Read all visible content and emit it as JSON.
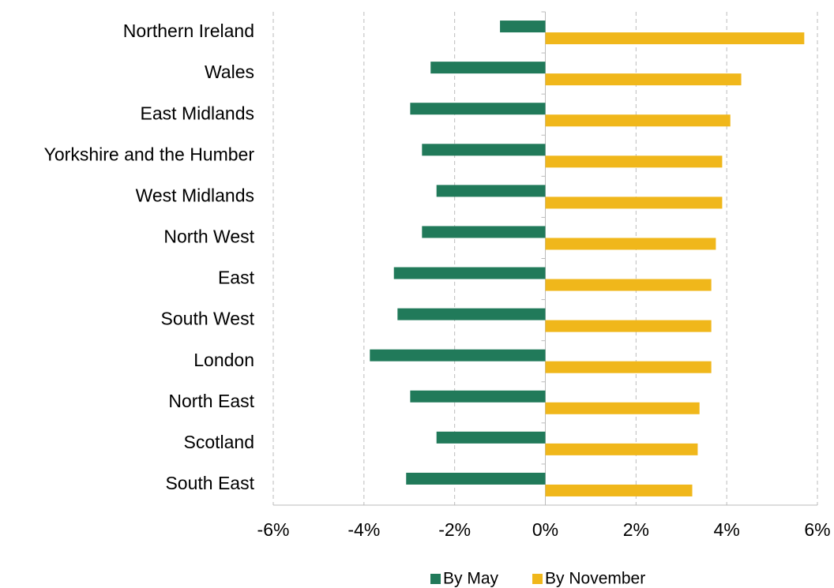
{
  "chart_data": {
    "type": "hbar",
    "categories": [
      "Northern Ireland",
      "Wales",
      "East Midlands",
      "Yorkshire and the Humber",
      "West Midlands",
      "North West",
      "East",
      "South West",
      "London",
      "North East",
      "Scotland",
      "South East"
    ],
    "series": [
      {
        "name": "By May",
        "color": "#217a5a",
        "values": [
          -1.0,
          -2.53,
          -2.98,
          -2.72,
          -2.4,
          -2.72,
          -3.34,
          -3.26,
          -3.87,
          -2.98,
          -2.4,
          -3.07
        ]
      },
      {
        "name": "By November",
        "color": "#f0b71b",
        "values": [
          5.71,
          4.32,
          4.08,
          3.9,
          3.9,
          3.76,
          3.66,
          3.66,
          3.66,
          3.4,
          3.36,
          3.24
        ]
      }
    ],
    "xlim": [
      -6,
      6
    ],
    "xticks": [
      {
        "value": -6,
        "label": "-6%"
      },
      {
        "value": -4,
        "label": "-4%"
      },
      {
        "value": -2,
        "label": "-2%"
      },
      {
        "value": 0,
        "label": "0%"
      },
      {
        "value": 2,
        "label": "2%"
      },
      {
        "value": 4,
        "label": "4%"
      },
      {
        "value": 6,
        "label": "6%"
      }
    ],
    "grid": true,
    "legend": "bottom"
  }
}
